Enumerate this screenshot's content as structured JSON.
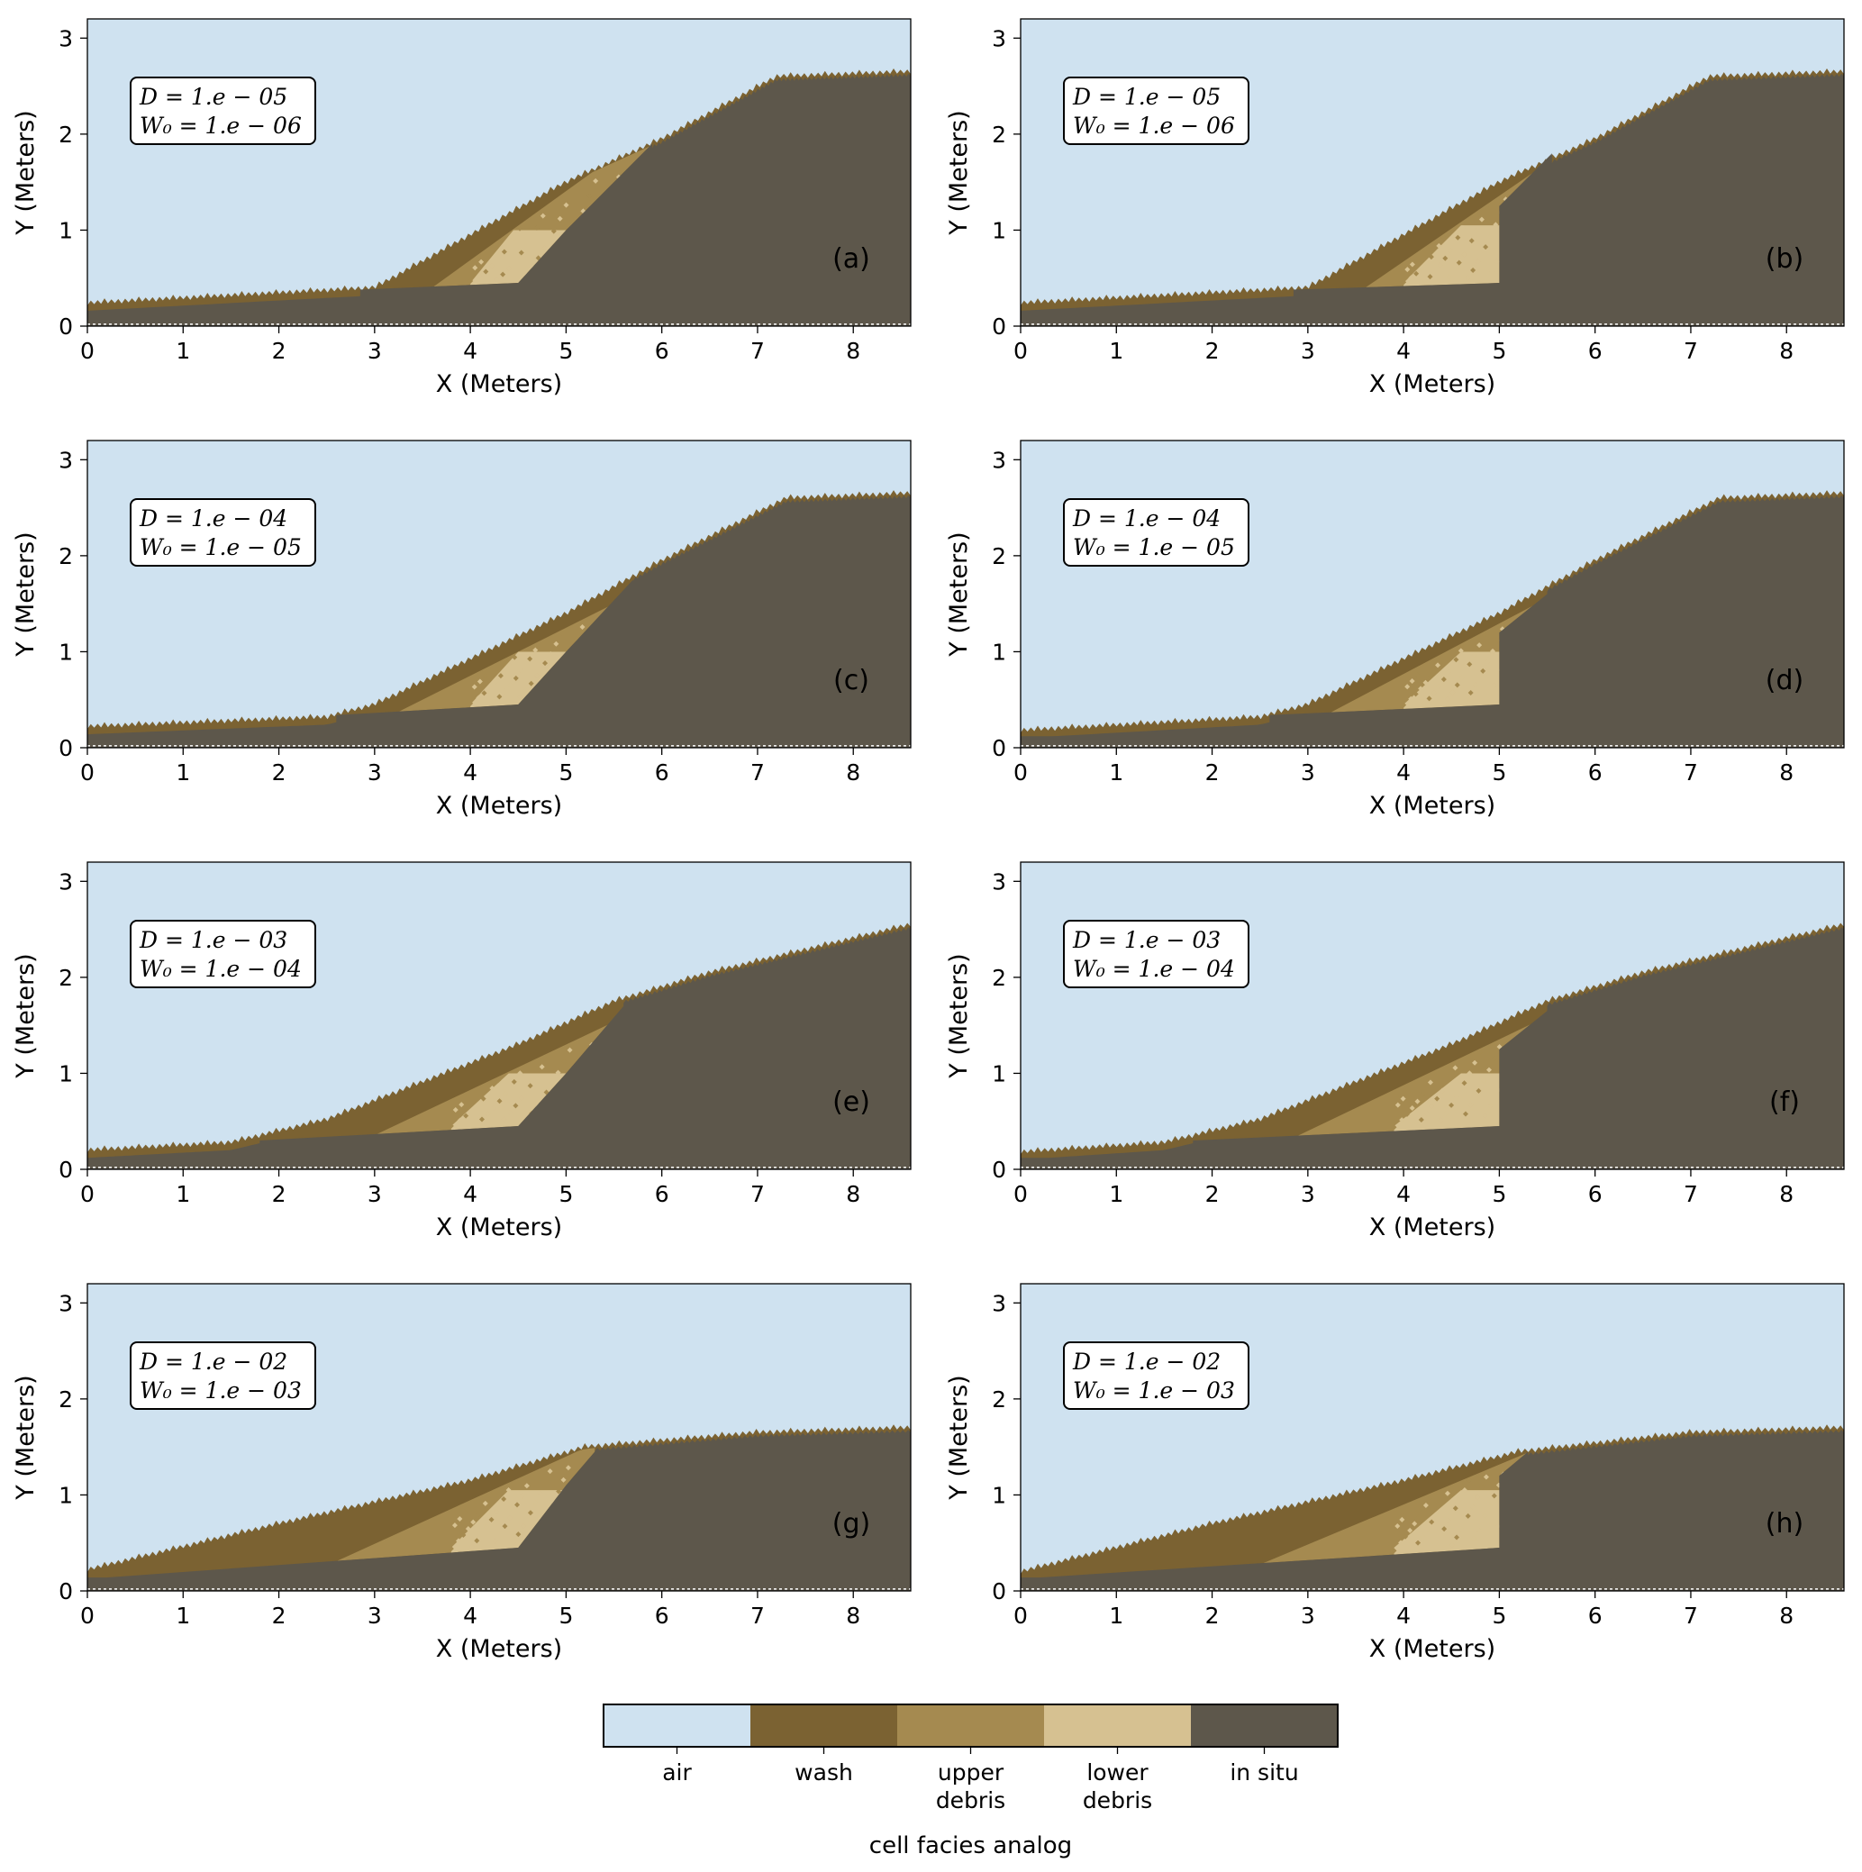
{
  "colors": {
    "air": "#cfe2f0",
    "wash": "#7b6232",
    "upper_debris": "#a58a50",
    "lower_debris": "#d6c191",
    "in_situ": "#5d574b"
  },
  "chart_data": [
    {
      "panel": "(a)",
      "type": "heatmap",
      "xlabel": "X (Meters)",
      "ylabel": "Y (Meters)",
      "xlim": [
        0,
        8.6
      ],
      "ylim": [
        0,
        3.2
      ],
      "xticks": [
        "0",
        "1",
        "2",
        "3",
        "4",
        "5",
        "6",
        "7",
        "8"
      ],
      "yticks": [
        "0",
        "1",
        "2",
        "3"
      ],
      "params": [
        "D = 1.e − 05",
        "W₀ = 1.e − 06"
      ],
      "cut": "slanted",
      "profiles": {
        "surface": [
          [
            0,
            0.24
          ],
          [
            3.0,
            0.4
          ],
          [
            5.0,
            1.5
          ],
          [
            6.0,
            1.95
          ],
          [
            7.2,
            2.6
          ],
          [
            8.6,
            2.65
          ]
        ],
        "debris_base": [
          [
            2.85,
            0.38
          ],
          [
            4.5,
            0.45
          ]
        ],
        "insitu_face": [
          [
            4.5,
            0.45
          ],
          [
            5.0,
            1.0
          ],
          [
            5.9,
            1.9
          ]
        ],
        "upper_lower_boundary": [
          [
            4.0,
            0.45
          ],
          [
            4.45,
            1.0
          ]
        ],
        "wash_boundary": [
          [
            3.6,
            0.4
          ],
          [
            5.2,
            1.55
          ]
        ]
      }
    },
    {
      "panel": "(b)",
      "type": "heatmap",
      "xlabel": "X (Meters)",
      "ylabel": "Y (Meters)",
      "xlim": [
        0,
        8.6
      ],
      "ylim": [
        0,
        3.2
      ],
      "xticks": [
        "0",
        "1",
        "2",
        "3",
        "4",
        "5",
        "6",
        "7",
        "8"
      ],
      "yticks": [
        "0",
        "1",
        "2",
        "3"
      ],
      "params": [
        "D = 1.e − 05",
        "W₀ = 1.e − 06"
      ],
      "cut": "vertical",
      "profiles": {
        "surface": [
          [
            0,
            0.24
          ],
          [
            3.0,
            0.4
          ],
          [
            5.0,
            1.5
          ],
          [
            6.0,
            1.95
          ],
          [
            7.2,
            2.6
          ],
          [
            8.6,
            2.65
          ]
        ],
        "debris_base": [
          [
            2.85,
            0.38
          ],
          [
            5.0,
            0.45
          ]
        ],
        "insitu_face": [
          [
            5.0,
            0.45
          ],
          [
            5.0,
            1.25
          ],
          [
            5.55,
            1.8
          ]
        ],
        "upper_lower_boundary": [
          [
            4.0,
            0.45
          ],
          [
            4.6,
            1.05
          ]
        ],
        "wash_boundary": [
          [
            3.6,
            0.4
          ],
          [
            5.5,
            1.7
          ]
        ]
      }
    },
    {
      "panel": "(c)",
      "type": "heatmap",
      "xlabel": "X (Meters)",
      "ylabel": "Y (Meters)",
      "xlim": [
        0,
        8.6
      ],
      "ylim": [
        0,
        3.2
      ],
      "xticks": [
        "0",
        "1",
        "2",
        "3",
        "4",
        "5",
        "6",
        "7",
        "8"
      ],
      "yticks": [
        "0",
        "1",
        "2",
        "3"
      ],
      "params": [
        "D = 1.e − 04",
        "W₀ = 1.e − 05"
      ],
      "cut": "slanted",
      "profiles": {
        "surface": [
          [
            0,
            0.22
          ],
          [
            2.5,
            0.32
          ],
          [
            3.0,
            0.45
          ],
          [
            5.0,
            1.4
          ],
          [
            6.0,
            1.95
          ],
          [
            7.3,
            2.6
          ],
          [
            8.6,
            2.65
          ]
        ],
        "debris_base": [
          [
            2.6,
            0.34
          ],
          [
            4.5,
            0.45
          ]
        ],
        "insitu_face": [
          [
            4.5,
            0.45
          ],
          [
            5.0,
            1.0
          ],
          [
            5.7,
            1.75
          ]
        ],
        "upper_lower_boundary": [
          [
            4.0,
            0.45
          ],
          [
            4.5,
            1.0
          ]
        ],
        "wash_boundary": [
          [
            3.3,
            0.4
          ],
          [
            5.0,
            1.25
          ]
        ]
      }
    },
    {
      "panel": "(d)",
      "type": "heatmap",
      "xlabel": "X (Meters)",
      "ylabel": "Y (Meters)",
      "xlim": [
        0,
        8.6
      ],
      "ylim": [
        0,
        3.2
      ],
      "xticks": [
        "0",
        "1",
        "2",
        "3",
        "4",
        "5",
        "6",
        "7",
        "8"
      ],
      "yticks": [
        "0",
        "1",
        "2",
        "3"
      ],
      "params": [
        "D = 1.e − 04",
        "W₀ = 1.e − 05"
      ],
      "cut": "vertical",
      "profiles": {
        "surface": [
          [
            0,
            0.18
          ],
          [
            2.5,
            0.32
          ],
          [
            3.0,
            0.45
          ],
          [
            5.0,
            1.4
          ],
          [
            6.0,
            1.95
          ],
          [
            7.3,
            2.6
          ],
          [
            8.6,
            2.65
          ]
        ],
        "debris_base": [
          [
            2.6,
            0.34
          ],
          [
            5.0,
            0.45
          ]
        ],
        "insitu_face": [
          [
            5.0,
            0.45
          ],
          [
            5.0,
            1.2
          ],
          [
            5.5,
            1.6
          ]
        ],
        "upper_lower_boundary": [
          [
            4.0,
            0.45
          ],
          [
            4.6,
            1.0
          ]
        ],
        "wash_boundary": [
          [
            3.3,
            0.4
          ],
          [
            5.2,
            1.4
          ]
        ]
      }
    },
    {
      "panel": "(e)",
      "type": "heatmap",
      "xlabel": "X (Meters)",
      "ylabel": "Y (Meters)",
      "xlim": [
        0,
        8.6
      ],
      "ylim": [
        0,
        3.2
      ],
      "xticks": [
        "0",
        "1",
        "2",
        "3",
        "4",
        "5",
        "6",
        "7",
        "8"
      ],
      "yticks": [
        "0",
        "1",
        "2",
        "3"
      ],
      "params": [
        "D = 1.e − 03",
        "W₀ = 1.e − 04"
      ],
      "cut": "slanted",
      "profiles": {
        "surface": [
          [
            0,
            0.2
          ],
          [
            1.5,
            0.28
          ],
          [
            2.5,
            0.52
          ],
          [
            4.5,
            1.3
          ],
          [
            5.5,
            1.75
          ],
          [
            6.5,
            2.05
          ],
          [
            8.6,
            2.55
          ]
        ],
        "debris_base": [
          [
            1.8,
            0.3
          ],
          [
            4.5,
            0.45
          ]
        ],
        "insitu_face": [
          [
            4.5,
            0.45
          ],
          [
            5.0,
            1.0
          ],
          [
            5.6,
            1.7
          ]
        ],
        "upper_lower_boundary": [
          [
            3.8,
            0.45
          ],
          [
            4.4,
            1.0
          ]
        ],
        "wash_boundary": [
          [
            3.2,
            0.45
          ],
          [
            5.0,
            1.3
          ]
        ]
      }
    },
    {
      "panel": "(f)",
      "type": "heatmap",
      "xlabel": "X (Meters)",
      "ylabel": "Y (Meters)",
      "xlim": [
        0,
        8.6
      ],
      "ylim": [
        0,
        3.2
      ],
      "xticks": [
        "0",
        "1",
        "2",
        "3",
        "4",
        "5",
        "6",
        "7",
        "8"
      ],
      "yticks": [
        "0",
        "1",
        "2",
        "3"
      ],
      "params": [
        "D = 1.e − 03",
        "W₀ = 1.e − 04"
      ],
      "cut": "vertical",
      "profiles": {
        "surface": [
          [
            0,
            0.18
          ],
          [
            1.5,
            0.28
          ],
          [
            2.5,
            0.52
          ],
          [
            4.5,
            1.3
          ],
          [
            5.5,
            1.75
          ],
          [
            6.5,
            2.05
          ],
          [
            8.6,
            2.55
          ]
        ],
        "debris_base": [
          [
            1.8,
            0.3
          ],
          [
            5.0,
            0.45
          ]
        ],
        "insitu_face": [
          [
            5.0,
            0.45
          ],
          [
            5.0,
            1.25
          ],
          [
            5.5,
            1.65
          ]
        ],
        "upper_lower_boundary": [
          [
            3.9,
            0.45
          ],
          [
            4.6,
            1.0
          ]
        ],
        "wash_boundary": [
          [
            3.0,
            0.4
          ],
          [
            5.2,
            1.45
          ]
        ]
      }
    },
    {
      "panel": "(g)",
      "type": "heatmap",
      "xlabel": "X (Meters)",
      "ylabel": "Y (Meters)",
      "xlim": [
        0,
        8.6
      ],
      "ylim": [
        0,
        3.2
      ],
      "xticks": [
        "0",
        "1",
        "2",
        "3",
        "4",
        "5",
        "6",
        "7",
        "8"
      ],
      "yticks": [
        "0",
        "1",
        "2",
        "3"
      ],
      "params": [
        "D = 1.e − 02",
        "W₀ = 1.e − 03"
      ],
      "cut": "slanted",
      "profiles": {
        "surface": [
          [
            0,
            0.22
          ],
          [
            2.0,
            0.7
          ],
          [
            4.0,
            1.15
          ],
          [
            5.2,
            1.5
          ],
          [
            7.0,
            1.65
          ],
          [
            8.6,
            1.7
          ]
        ],
        "debris_base": [
          [
            0.2,
            0.14
          ],
          [
            4.5,
            0.45
          ]
        ],
        "insitu_face": [
          [
            4.5,
            0.45
          ],
          [
            5.0,
            1.1
          ],
          [
            5.3,
            1.45
          ]
        ],
        "upper_lower_boundary": [
          [
            3.8,
            0.45
          ],
          [
            4.4,
            1.05
          ]
        ],
        "wash_boundary": [
          [
            2.8,
            0.4
          ],
          [
            5.0,
            1.4
          ]
        ]
      }
    },
    {
      "panel": "(h)",
      "type": "heatmap",
      "xlabel": "X (Meters)",
      "ylabel": "Y (Meters)",
      "xlim": [
        0,
        8.6
      ],
      "ylim": [
        0,
        3.2
      ],
      "xticks": [
        "0",
        "1",
        "2",
        "3",
        "4",
        "5",
        "6",
        "7",
        "8"
      ],
      "yticks": [
        "0",
        "1",
        "2",
        "3"
      ],
      "params": [
        "D = 1.e − 02",
        "W₀ = 1.e − 03"
      ],
      "cut": "vertical",
      "profiles": {
        "surface": [
          [
            0,
            0.2
          ],
          [
            2.0,
            0.7
          ],
          [
            4.0,
            1.15
          ],
          [
            5.2,
            1.45
          ],
          [
            7.0,
            1.65
          ],
          [
            8.6,
            1.7
          ]
        ],
        "debris_base": [
          [
            0.2,
            0.14
          ],
          [
            5.0,
            0.45
          ]
        ],
        "insitu_face": [
          [
            5.0,
            0.45
          ],
          [
            5.0,
            1.2
          ],
          [
            5.3,
            1.45
          ]
        ],
        "upper_lower_boundary": [
          [
            3.9,
            0.45
          ],
          [
            4.6,
            1.05
          ]
        ],
        "wash_boundary": [
          [
            2.8,
            0.4
          ],
          [
            5.2,
            1.4
          ]
        ]
      }
    }
  ],
  "colorbar": {
    "title": "cell facies analog",
    "categories": [
      {
        "key": "air",
        "label_lines": [
          "air"
        ]
      },
      {
        "key": "wash",
        "label_lines": [
          "wash"
        ]
      },
      {
        "key": "upper_debris",
        "label_lines": [
          "upper",
          "debris"
        ]
      },
      {
        "key": "lower_debris",
        "label_lines": [
          "lower",
          "debris"
        ]
      },
      {
        "key": "in_situ",
        "label_lines": [
          "in situ"
        ]
      }
    ]
  }
}
